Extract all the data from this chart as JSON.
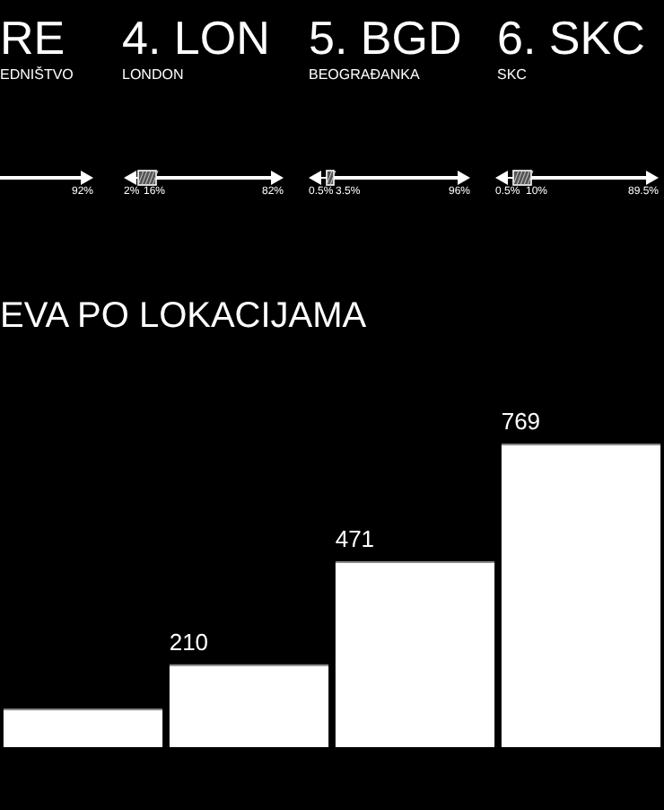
{
  "chart_data": {
    "type": "bar",
    "title": "EVA PO LOKACIJAMA",
    "categories": [
      null,
      null,
      null,
      null
    ],
    "values": [
      98,
      210,
      471,
      769
    ],
    "value_labels": [
      null,
      "210",
      "471",
      "769"
    ],
    "color": "#ffffff",
    "tick_labels": false,
    "legend": false,
    "annotations": [
      "RE",
      "EDNIŠTVO",
      "92%",
      "4. LON",
      "LONDON",
      "2%",
      "16%",
      "82%",
      "5. BGD",
      "BEOGRAĐANKA",
      "0.5%",
      "3.5%",
      "96%",
      "6. SKC",
      "SKC",
      "0.5%",
      "10%",
      "89.5%"
    ]
  }
}
